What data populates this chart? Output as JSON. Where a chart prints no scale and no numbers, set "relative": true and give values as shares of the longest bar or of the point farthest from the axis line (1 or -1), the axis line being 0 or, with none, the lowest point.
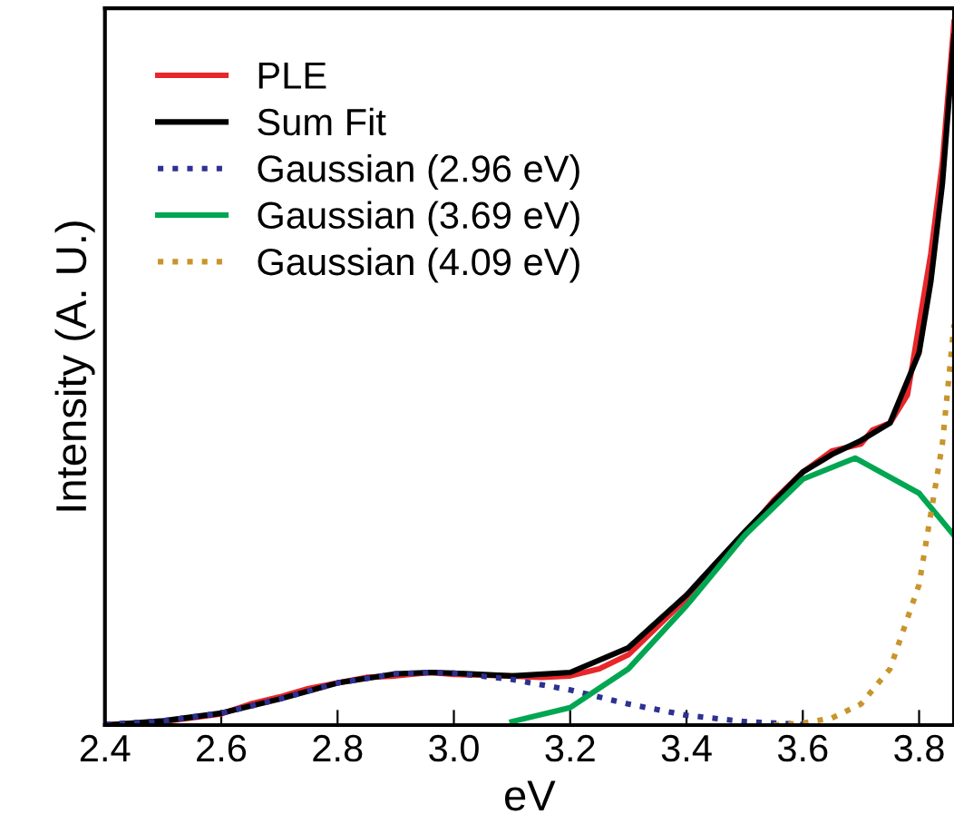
{
  "chart_data": {
    "type": "line",
    "xlabel": "eV",
    "ylabel": "Intensity (A. U.)",
    "relative": true,
    "xlim": [
      2.4,
      3.86
    ],
    "xticks": [
      {
        "value": 2.4,
        "label": "2.4"
      },
      {
        "value": 2.6,
        "label": "2.6"
      },
      {
        "value": 2.8,
        "label": "2.8"
      },
      {
        "value": 3.0,
        "label": "3.0"
      },
      {
        "value": 3.2,
        "label": "3.2"
      },
      {
        "value": 3.4,
        "label": "3.4"
      },
      {
        "value": 3.6,
        "label": "3.6"
      },
      {
        "value": 3.8,
        "label": "3.8"
      }
    ],
    "legend": "top left",
    "grid": false,
    "series": [
      {
        "name": "PLE",
        "color": "#e8272a",
        "line_style": "solid",
        "x": [
          2.4,
          2.5,
          2.6,
          2.65,
          2.7,
          2.75,
          2.8,
          2.85,
          2.9,
          2.96,
          3.0,
          3.05,
          3.1,
          3.15,
          3.2,
          3.25,
          3.3,
          3.35,
          3.4,
          3.45,
          3.5,
          3.55,
          3.6,
          3.65,
          3.7,
          3.72,
          3.75,
          3.78,
          3.8,
          3.82,
          3.84,
          3.86
        ],
        "values": [
          0.0,
          0.005,
          0.016,
          0.03,
          0.04,
          0.052,
          0.06,
          0.068,
          0.07,
          0.075,
          0.072,
          0.071,
          0.07,
          0.068,
          0.07,
          0.08,
          0.1,
          0.14,
          0.18,
          0.23,
          0.27,
          0.32,
          0.36,
          0.39,
          0.4,
          0.42,
          0.43,
          0.47,
          0.57,
          0.67,
          0.8,
          1.0
        ]
      },
      {
        "name": "Sum Fit",
        "color": "#000000",
        "line_style": "solid",
        "x": [
          2.4,
          2.5,
          2.6,
          2.7,
          2.8,
          2.9,
          2.96,
          3.0,
          3.1,
          3.2,
          3.3,
          3.4,
          3.5,
          3.6,
          3.65,
          3.7,
          3.75,
          3.8,
          3.82,
          3.84,
          3.86
        ],
        "values": [
          0.0,
          0.006,
          0.017,
          0.037,
          0.06,
          0.073,
          0.075,
          0.074,
          0.07,
          0.075,
          0.11,
          0.185,
          0.275,
          0.36,
          0.385,
          0.405,
          0.43,
          0.53,
          0.63,
          0.77,
          0.98
        ]
      },
      {
        "name": "Gaussian (2.96 eV)",
        "color": "#2e3192",
        "line_style": "dotted",
        "x": [
          2.4,
          2.5,
          2.6,
          2.7,
          2.8,
          2.9,
          2.96,
          3.0,
          3.1,
          3.2,
          3.3,
          3.4,
          3.5,
          3.6
        ],
        "values": [
          0.001,
          0.006,
          0.017,
          0.037,
          0.06,
          0.073,
          0.075,
          0.074,
          0.065,
          0.05,
          0.03,
          0.014,
          0.005,
          0.001
        ]
      },
      {
        "name": "Gaussian (3.69 eV)",
        "color": "#00a651",
        "line_style": "solid",
        "x": [
          3.1,
          3.2,
          3.3,
          3.4,
          3.5,
          3.6,
          3.69,
          3.8,
          3.86
        ],
        "values": [
          0.005,
          0.025,
          0.08,
          0.17,
          0.27,
          0.35,
          0.38,
          0.33,
          0.27
        ]
      },
      {
        "name": "Gaussian (4.09 eV)",
        "color": "#c8952c",
        "line_style": "dotted",
        "x": [
          3.55,
          3.6,
          3.65,
          3.7,
          3.75,
          3.8,
          3.84,
          3.86
        ],
        "values": [
          0.0,
          0.003,
          0.01,
          0.03,
          0.08,
          0.2,
          0.4,
          0.57
        ]
      }
    ]
  }
}
